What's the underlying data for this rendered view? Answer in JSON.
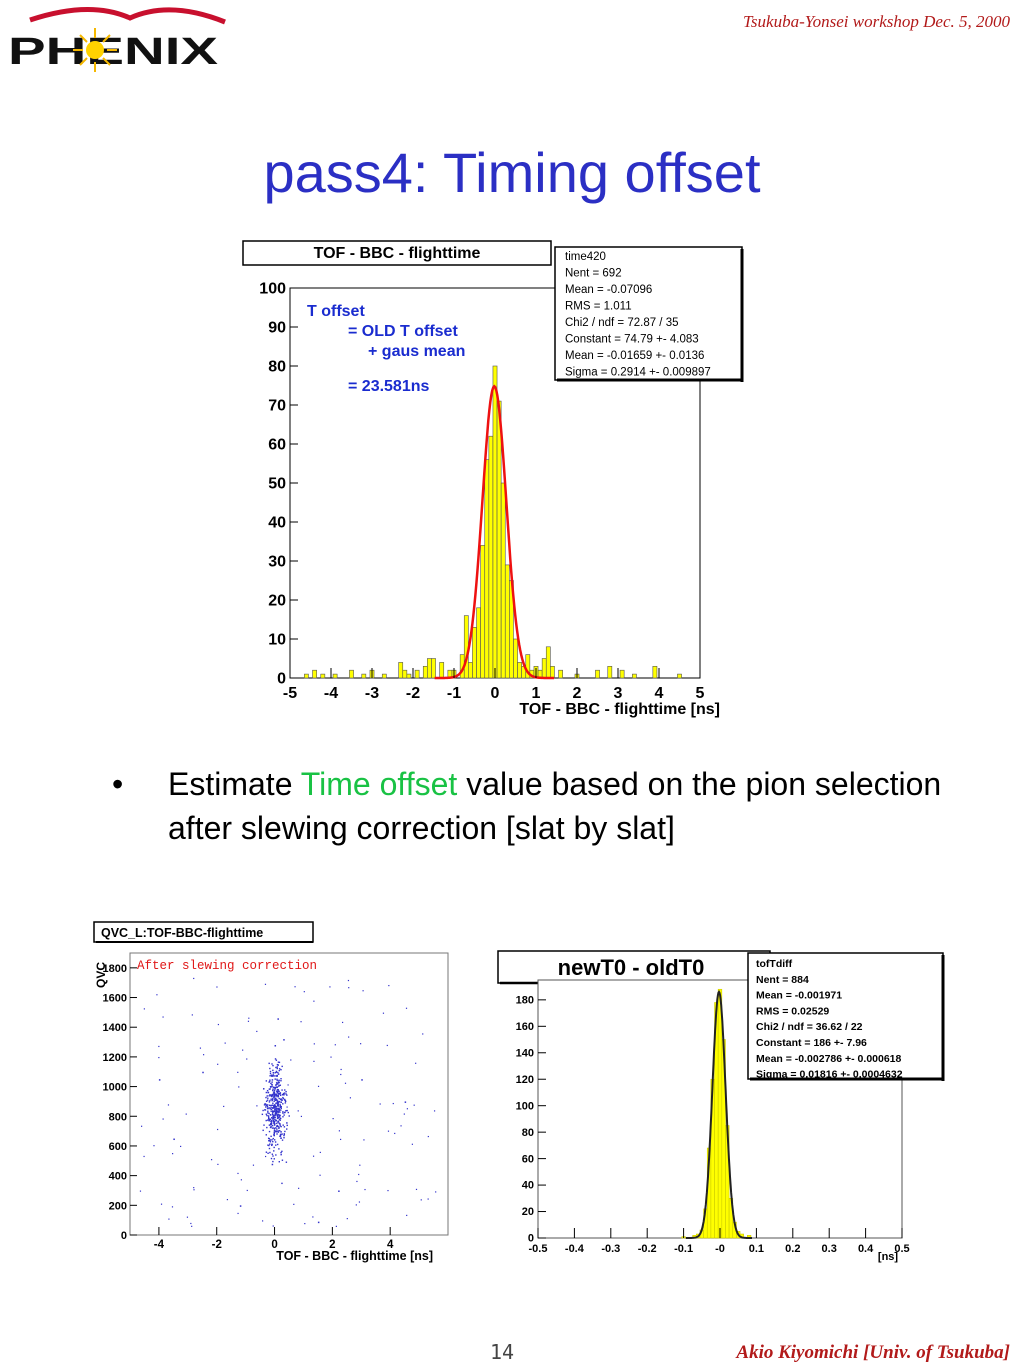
{
  "header": {
    "logo_text": "PHENIX",
    "workshop": "Tsukuba-Yonsei workshop  Dec. 5, 2000"
  },
  "title": "pass4: Timing offset",
  "bullet": {
    "before": "Estimate ",
    "highlight": "Time offset",
    "after": " value based on the pion selection after slewing correction [slat by slat]"
  },
  "footer": {
    "page_number": "14",
    "author": "Akio Kiyomichi [Univ. of Tsukuba]"
  },
  "colors": {
    "title": "#2b2fc4",
    "highlight": "#19c244",
    "header_footer": "#b21a1a",
    "histogram_fill": "#ffff00",
    "fit_curve": "#ff0000",
    "scatter_points": "#3333cc"
  },
  "chart_data": [
    {
      "type": "bar",
      "title": "TOF - BBC - flighttime",
      "xlabel": "TOF - BBC - flighttime [ns]",
      "ylabel": "",
      "xlim": [
        -5,
        5
      ],
      "ylim": [
        0,
        100
      ],
      "x_ticks": [
        "-5",
        "-4",
        "-3",
        "-2",
        "-1",
        "0",
        "1",
        "2",
        "3",
        "4",
        "5"
      ],
      "y_ticks": [
        "0",
        "10",
        "20",
        "30",
        "40",
        "50",
        "60",
        "70",
        "80",
        "90",
        "100"
      ],
      "annotation": [
        "T offset",
        "= OLD T offset",
        "+ gaus mean",
        "= 23.581ns"
      ],
      "stats": [
        "time420",
        "Nent = 692",
        "Mean  = -0.07096",
        "RMS   =  1.011",
        "Chi2 / ndf = 72.87 / 35",
        "Constant = 74.79 +-  4.083",
        "Mean     = -0.01659 +- 0.0136",
        "Sigma    = 0.2914 +-  0.009897"
      ],
      "bin_width": 0.1,
      "bins": [
        {
          "x": -4.6,
          "y": 1
        },
        {
          "x": -4.4,
          "y": 2
        },
        {
          "x": -4.2,
          "y": 1
        },
        {
          "x": -3.9,
          "y": 1
        },
        {
          "x": -3.5,
          "y": 2
        },
        {
          "x": -3.2,
          "y": 1
        },
        {
          "x": -3.0,
          "y": 2
        },
        {
          "x": -2.7,
          "y": 1
        },
        {
          "x": -2.3,
          "y": 4
        },
        {
          "x": -2.2,
          "y": 2
        },
        {
          "x": -2.1,
          "y": 1
        },
        {
          "x": -1.9,
          "y": 2
        },
        {
          "x": -1.7,
          "y": 3
        },
        {
          "x": -1.6,
          "y": 5
        },
        {
          "x": -1.5,
          "y": 5
        },
        {
          "x": -1.3,
          "y": 4
        },
        {
          "x": -1.1,
          "y": 2
        },
        {
          "x": -1.0,
          "y": 2
        },
        {
          "x": -0.8,
          "y": 6
        },
        {
          "x": -0.7,
          "y": 16
        },
        {
          "x": -0.6,
          "y": 4
        },
        {
          "x": -0.5,
          "y": 13
        },
        {
          "x": -0.4,
          "y": 18
        },
        {
          "x": -0.3,
          "y": 34
        },
        {
          "x": -0.2,
          "y": 56
        },
        {
          "x": -0.1,
          "y": 62
        },
        {
          "x": 0.0,
          "y": 80
        },
        {
          "x": 0.1,
          "y": 71
        },
        {
          "x": 0.2,
          "y": 50
        },
        {
          "x": 0.3,
          "y": 29
        },
        {
          "x": 0.4,
          "y": 25
        },
        {
          "x": 0.5,
          "y": 10
        },
        {
          "x": 0.6,
          "y": 4
        },
        {
          "x": 0.7,
          "y": 3
        },
        {
          "x": 0.8,
          "y": 6
        },
        {
          "x": 0.9,
          "y": 2
        },
        {
          "x": 1.0,
          "y": 3
        },
        {
          "x": 1.1,
          "y": 2
        },
        {
          "x": 1.2,
          "y": 5
        },
        {
          "x": 1.3,
          "y": 8
        },
        {
          "x": 1.4,
          "y": 3
        },
        {
          "x": 1.6,
          "y": 2
        },
        {
          "x": 2.0,
          "y": 1
        },
        {
          "x": 2.5,
          "y": 2
        },
        {
          "x": 2.8,
          "y": 3
        },
        {
          "x": 3.1,
          "y": 2
        },
        {
          "x": 3.4,
          "y": 1
        },
        {
          "x": 3.9,
          "y": 3
        },
        {
          "x": 4.5,
          "y": 1
        }
      ],
      "fit": {
        "function": "gaus",
        "constant": 74.79,
        "mean": -0.01659,
        "sigma": 0.2914
      }
    },
    {
      "type": "scatter",
      "title": "QVC_L:TOF-BBC-flighttime",
      "annotation": "After slewing correction",
      "xlabel": "TOF - BBC - flighttime  [ns]",
      "ylabel": "QVC",
      "xlim": [
        -5,
        6
      ],
      "ylim": [
        0,
        1900
      ],
      "x_ticks": [
        "-4",
        "-2",
        "0",
        "2",
        "4"
      ],
      "y_ticks": [
        "0",
        "200",
        "400",
        "600",
        "800",
        "1000",
        "1200",
        "1400",
        "1600",
        "1800"
      ],
      "description_core": {
        "x_center": 0,
        "y_center": 850,
        "x_spread": 0.3,
        "y_spread": 230
      },
      "points": [
        {
          "x": 0.1,
          "y": 900
        },
        {
          "x": -0.2,
          "y": 780
        },
        {
          "x": 0.3,
          "y": 950
        },
        {
          "x": 0.0,
          "y": 820
        },
        {
          "x": -0.1,
          "y": 1050
        },
        {
          "x": 0.2,
          "y": 700
        },
        {
          "x": -0.3,
          "y": 880
        },
        {
          "x": 0.4,
          "y": 760
        },
        {
          "x": 0.1,
          "y": 1150
        },
        {
          "x": -0.2,
          "y": 640
        },
        {
          "x": 0.0,
          "y": 1280
        },
        {
          "x": 0.2,
          "y": 560
        },
        {
          "x": -0.4,
          "y": 990
        },
        {
          "x": 0.3,
          "y": 1320
        },
        {
          "x": -0.1,
          "y": 480
        },
        {
          "x": 0.1,
          "y": 1460
        },
        {
          "x": -2.5,
          "y": 1100
        },
        {
          "x": 3.0,
          "y": 1050
        },
        {
          "x": -3.5,
          "y": 650
        },
        {
          "x": 4.5,
          "y": 900
        },
        {
          "x": -1.2,
          "y": 200
        },
        {
          "x": 2.2,
          "y": 300
        },
        {
          "x": 1.5,
          "y": 90
        },
        {
          "x": -4.0,
          "y": 1050
        }
      ]
    },
    {
      "type": "bar",
      "title": "newT0 - oldT0",
      "xlabel": "[ns]",
      "ylabel": "",
      "xlim": [
        -0.5,
        0.5
      ],
      "ylim": [
        0,
        195
      ],
      "x_ticks": [
        "-0.5",
        "-0.4",
        "-0.3",
        "-0.2",
        "-0.1",
        "-0",
        "0.1",
        "0.2",
        "0.3",
        "0.4",
        "0.5"
      ],
      "y_ticks": [
        "0",
        "20",
        "40",
        "60",
        "80",
        "100",
        "120",
        "140",
        "160",
        "180"
      ],
      "stats": [
        "tofTdiff",
        "Nent = 884",
        "Mean  = -0.001971",
        "RMS   = 0.02529",
        "Chi2 / ndf = 36.62 / 22",
        "Constant =   186 +-  7.96",
        "Mean     = -0.002786 +- 0.000618",
        "Sigma    = 0.01816 +- 0.0004632"
      ],
      "bin_width": 0.01,
      "bins": [
        {
          "x": -0.1,
          "y": 1
        },
        {
          "x": -0.07,
          "y": 2
        },
        {
          "x": -0.06,
          "y": 3
        },
        {
          "x": -0.05,
          "y": 6
        },
        {
          "x": -0.04,
          "y": 22
        },
        {
          "x": -0.03,
          "y": 68
        },
        {
          "x": -0.02,
          "y": 120
        },
        {
          "x": -0.01,
          "y": 178
        },
        {
          "x": 0.0,
          "y": 188
        },
        {
          "x": 0.01,
          "y": 150
        },
        {
          "x": 0.02,
          "y": 85
        },
        {
          "x": 0.03,
          "y": 30
        },
        {
          "x": 0.04,
          "y": 12
        },
        {
          "x": 0.05,
          "y": 5
        },
        {
          "x": 0.06,
          "y": 3
        },
        {
          "x": 0.08,
          "y": 2
        }
      ],
      "fit": {
        "function": "gaus",
        "constant": 186,
        "mean": -0.002786,
        "sigma": 0.01816
      }
    }
  ]
}
